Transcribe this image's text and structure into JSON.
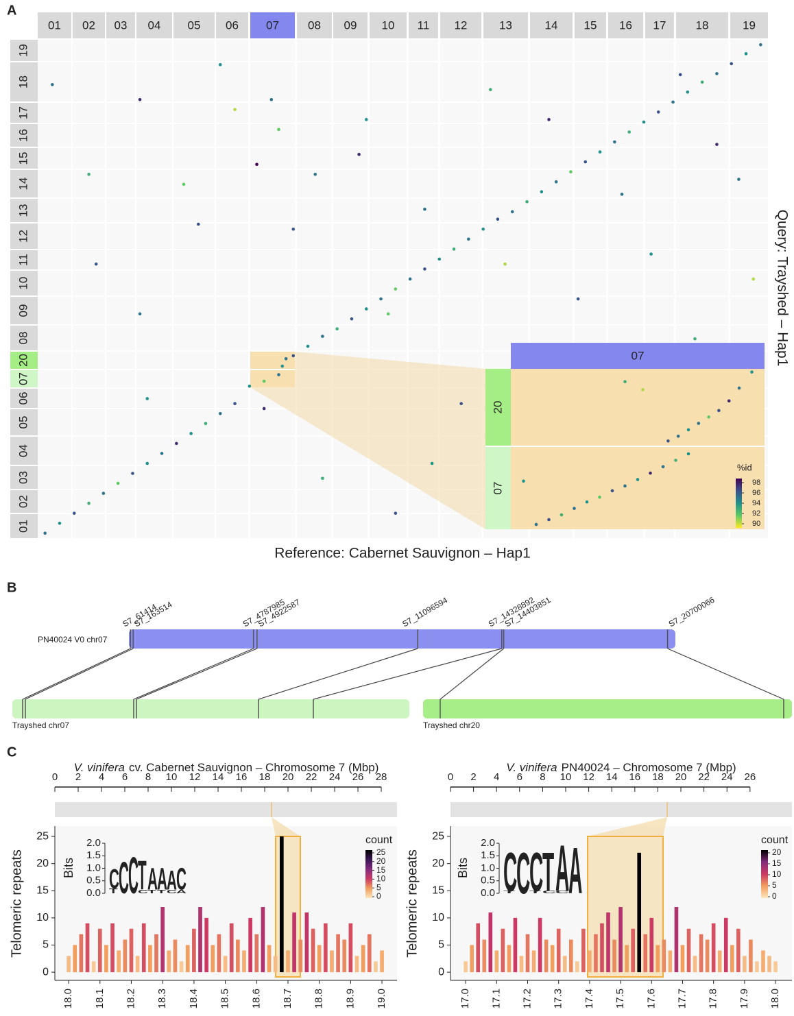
{
  "panel_labels": [
    "A",
    "B",
    "C"
  ],
  "dotplot": {
    "type": "scatter",
    "ref_chromosomes": [
      "01",
      "02",
      "03",
      "04",
      "05",
      "06",
      "07",
      "08",
      "09",
      "10",
      "11",
      "12",
      "13",
      "14",
      "15",
      "16",
      "17",
      "18",
      "19"
    ],
    "query_chromosomes": [
      "01",
      "02",
      "03",
      "04",
      "05",
      "06",
      "07",
      "20",
      "08",
      "09",
      "10",
      "11",
      "12",
      "13",
      "14",
      "15",
      "16",
      "17",
      "18",
      "19"
    ],
    "highlight_ref": "07",
    "highlight_color": "#8387ee",
    "row_colors": {
      "20": "#a5ee85",
      "07": "#cef6c6"
    },
    "x_label": "Reference: Cabernet Sauvignon – Hap1",
    "y_label": "Query: Trayshed – Hap1",
    "x": [
      1,
      3,
      5,
      7,
      9,
      11,
      13,
      15,
      17,
      19,
      21,
      23,
      25,
      27,
      29,
      31,
      33,
      35,
      37,
      39,
      41,
      43,
      45,
      47,
      49,
      51,
      53,
      55,
      57,
      59,
      61,
      63,
      65,
      67,
      69,
      71,
      73,
      75,
      77,
      79,
      81,
      83,
      85,
      87,
      89,
      91,
      93,
      95,
      97,
      99,
      33.5,
      34,
      2,
      7,
      8,
      14,
      14,
      15,
      20,
      22,
      25,
      27,
      30,
      31,
      32,
      33,
      35,
      38,
      39,
      44,
      45,
      48,
      49,
      53,
      54,
      58,
      62,
      64,
      70,
      71,
      74,
      77,
      80,
      84,
      88,
      90,
      93,
      96,
      98
    ],
    "y": [
      1,
      3,
      5,
      7,
      9,
      11,
      13,
      15,
      17,
      19,
      21,
      23,
      25,
      27,
      30.5,
      31.5,
      32.8,
      36.6,
      38.5,
      40.5,
      42,
      44,
      46,
      48,
      50,
      52,
      54,
      56,
      58,
      60,
      62,
      64,
      65.5,
      67.5,
      69.5,
      71.5,
      73.5,
      75.5,
      77.5,
      79.5,
      81.5,
      83.5,
      85.5,
      87.5,
      89.5,
      91.5,
      93.2,
      95.2,
      97.2,
      99,
      34.5,
      36,
      91,
      73,
      55,
      88,
      45,
      28,
      71,
      63,
      95,
      86,
      75,
      26,
      88,
      82,
      62,
      73,
      12,
      77,
      84,
      45,
      5,
      66,
      15,
      27,
      90,
      55,
      84,
      38,
      48,
      22,
      69,
      57,
      93,
      40,
      79,
      72,
      52
    ],
    "values": [
      95,
      94,
      96,
      93,
      95,
      92,
      96,
      94,
      95,
      97,
      94,
      93,
      95,
      96,
      94,
      92,
      95,
      96,
      94,
      95,
      93,
      96,
      94,
      95,
      92,
      95,
      96,
      94,
      93,
      95,
      94,
      96,
      95,
      93,
      94,
      95,
      92,
      96,
      94,
      95,
      93,
      94,
      96,
      95,
      94,
      93,
      95,
      96,
      94,
      95,
      94,
      95,
      95,
      93,
      96,
      97,
      95,
      94,
      92,
      96,
      94,
      91,
      98,
      97,
      95,
      92,
      96,
      95,
      93,
      97,
      94,
      92,
      96,
      95,
      94,
      96,
      93,
      91,
      97,
      94,
      96,
      92,
      95,
      94,
      96,
      93,
      97,
      95,
      91
    ],
    "legend_title": "%id",
    "legend_ticks": [
      98,
      96,
      94,
      92,
      90
    ],
    "colormap": [
      "#fde725",
      "#5ec962",
      "#21918c",
      "#3b528b",
      "#440154"
    ],
    "inset": {
      "ref": "07",
      "rows": [
        "20",
        "07"
      ],
      "x": [
        5,
        10,
        15,
        20,
        25,
        30,
        35,
        40,
        45,
        50,
        55,
        60,
        65,
        70,
        62,
        66,
        70,
        74,
        78,
        82,
        86,
        90,
        95,
        45,
        52
      ],
      "y": [
        30,
        3,
        6,
        9,
        13,
        17,
        20,
        24,
        27,
        31,
        35,
        39,
        43,
        47,
        55,
        58,
        62,
        66,
        70,
        74,
        80,
        88,
        98,
        92,
        87
      ],
      "values": [
        94,
        95,
        96,
        93,
        95,
        94,
        92,
        96,
        95,
        94,
        97,
        95,
        93,
        94,
        96,
        95,
        94,
        95,
        92,
        96,
        97,
        95,
        94,
        93,
        91
      ]
    }
  },
  "synteny": {
    "reference": "PN40024 V0 chr07",
    "targets": [
      "Trayshed chr07",
      "Trayshed chr20"
    ],
    "breakpoints": [
      {
        "value": 61414,
        "label": "S7_61414"
      },
      {
        "value": 163514,
        "label": "S7_163514"
      },
      {
        "value": 4787985,
        "label": "S7_4787985"
      },
      {
        "value": 4922587,
        "label": "S7_4922587"
      },
      {
        "value": 11096594,
        "label": "S7_11096594"
      },
      {
        "value": 14328892,
        "label": "S7_14328892"
      },
      {
        "value": 14403851,
        "label": "S7_14403851"
      },
      {
        "value": 20700066,
        "label": "S7_20700066"
      }
    ]
  },
  "telomere": [
    {
      "type": "bar",
      "title_italic": "V. vinifera",
      "title": "cv. Cabernet Sauvignon – Chromosome 7 (Mbp)",
      "top_xlim": [
        0,
        29.35
      ],
      "top_ticks": [
        0,
        2,
        4,
        6,
        8,
        10,
        12,
        14,
        16,
        18,
        20,
        22,
        24,
        26,
        28
      ],
      "y_label": "Telomeric repeats",
      "ylim": [
        -1.5,
        26.9
      ],
      "yticks": [
        0,
        5,
        10,
        15,
        20,
        25
      ],
      "xlim": [
        17.956,
        19.048
      ],
      "xticks": [
        {
          "value": 18,
          "label": "18.0"
        },
        {
          "value": 18.1,
          "label": "18.1"
        },
        {
          "value": 18.2,
          "label": "18.2"
        },
        {
          "value": 18.3,
          "label": "18.3"
        },
        {
          "value": 18.4,
          "label": "18.4"
        },
        {
          "value": 18.5,
          "label": "18.5"
        },
        {
          "value": 18.6,
          "label": "18.6"
        },
        {
          "value": 18.7,
          "label": "18.7"
        },
        {
          "value": 18.8,
          "label": "18.8"
        },
        {
          "value": 18.9,
          "label": "18.9"
        },
        {
          "value": 19,
          "label": "19.0"
        }
      ],
      "x": [
        18,
        18.02,
        18.04,
        18.06,
        18.08,
        18.1,
        18.12,
        18.14,
        18.16,
        18.18,
        18.2,
        18.22,
        18.24,
        18.26,
        18.28,
        18.3,
        18.32,
        18.34,
        18.36,
        18.38,
        18.4,
        18.42,
        18.44,
        18.46,
        18.48,
        18.5,
        18.52,
        18.54,
        18.56,
        18.58,
        18.6,
        18.62,
        18.64,
        18.66,
        18.68,
        18.7,
        18.72,
        18.74,
        18.76,
        18.78,
        18.8,
        18.82,
        18.84,
        18.86,
        18.88,
        18.9,
        18.92,
        18.94,
        18.96,
        18.98,
        19
      ],
      "values": [
        3,
        5,
        7,
        9,
        2,
        8,
        5,
        9,
        4,
        6,
        8,
        3,
        9,
        5,
        7,
        12,
        4,
        6,
        2,
        5,
        8,
        12,
        10,
        5,
        7,
        3,
        9,
        6,
        4,
        10,
        7,
        12,
        5,
        3,
        25,
        4,
        11,
        6,
        11,
        8,
        5,
        9,
        4,
        7,
        6,
        9,
        3,
        5,
        7,
        2,
        4
      ],
      "legend_title": "count",
      "legend_ticks": [
        0,
        5,
        10,
        15,
        20,
        25
      ],
      "colormap": [
        "#fbe6bc",
        "#f29e5e",
        "#cc3a63",
        "#842a7c",
        "#3b1657",
        "#000000"
      ],
      "logo": {
        "y_label": "Bits",
        "yticks": [
          {
            "value": 0,
            "label": "0.0"
          },
          {
            "value": 0.5,
            "label": "0.5"
          },
          {
            "value": 1,
            "label": "1.0"
          },
          {
            "value": 1.5,
            "label": "1.5"
          },
          {
            "value": 2,
            "label": "2.0"
          }
        ],
        "letter_colors": {
          "A": "#3f9a47",
          "C": "#3a5fa8",
          "T": "#d9342b"
        },
        "positions": [
          [
            {
              "letter": "T",
              "bits": 0.2
            },
            {
              "letter": "C",
              "bits": 0.8
            }
          ],
          [
            {
              "letter": "C",
              "bits": 1.3
            }
          ],
          [
            {
              "letter": "C",
              "bits": 1.5
            }
          ],
          [
            {
              "letter": "C",
              "bits": 0.15
            },
            {
              "letter": "T",
              "bits": 1.2
            }
          ],
          [
            {
              "letter": "T",
              "bits": 0.15
            },
            {
              "letter": "A",
              "bits": 0.9
            }
          ],
          [
            {
              "letter": "T",
              "bits": 0.15
            },
            {
              "letter": "A",
              "bits": 0.9
            }
          ],
          [
            {
              "letter": "C",
              "bits": 0.15
            },
            {
              "letter": "A",
              "bits": 0.8
            }
          ],
          [
            {
              "letter": "A",
              "bits": 0.15
            },
            {
              "letter": "C",
              "bits": 0.9
            }
          ]
        ]
      }
    },
    {
      "type": "bar",
      "title_italic": "V. vinifera",
      "title": "PN40024 – Chromosome 7 (Mbp)",
      "top_xlim": [
        0,
        29.64
      ],
      "top_ticks": [
        0,
        2,
        4,
        6,
        8,
        10,
        12,
        14,
        16,
        18,
        20,
        22,
        24,
        26
      ],
      "y_label": "Telomeric repeats",
      "ylim": [
        -1.5,
        26.9
      ],
      "yticks": [
        0,
        5,
        10,
        15,
        20,
        25
      ],
      "xlim": [
        16.951,
        18.053
      ],
      "xticks": [
        {
          "value": 17,
          "label": "17.0"
        },
        {
          "value": 17.1,
          "label": "17.1"
        },
        {
          "value": 17.2,
          "label": "17.2"
        },
        {
          "value": 17.3,
          "label": "17.3"
        },
        {
          "value": 17.4,
          "label": "17.4"
        },
        {
          "value": 17.5,
          "label": "17.5"
        },
        {
          "value": 17.6,
          "label": "17.6"
        },
        {
          "value": 17.7,
          "label": "17.7"
        },
        {
          "value": 17.8,
          "label": "17.8"
        },
        {
          "value": 17.9,
          "label": "17.9"
        },
        {
          "value": 18,
          "label": "18.0"
        }
      ],
      "x": [
        17,
        17.02,
        17.04,
        17.06,
        17.08,
        17.1,
        17.12,
        17.14,
        17.16,
        17.18,
        17.2,
        17.22,
        17.24,
        17.26,
        17.28,
        17.3,
        17.32,
        17.34,
        17.36,
        17.38,
        17.4,
        17.42,
        17.44,
        17.46,
        17.48,
        17.5,
        17.52,
        17.54,
        17.56,
        17.58,
        17.6,
        17.62,
        17.64,
        17.66,
        17.68,
        17.7,
        17.72,
        17.74,
        17.76,
        17.78,
        17.8,
        17.82,
        17.84,
        17.86,
        17.88,
        17.9,
        17.92,
        17.94,
        17.96,
        17.98,
        18
      ],
      "values": [
        2,
        5,
        9,
        6,
        11,
        4,
        8,
        5,
        10,
        3,
        7,
        4,
        10,
        6,
        5,
        8,
        3,
        6,
        2,
        8,
        4,
        7,
        9,
        11,
        6,
        12,
        5,
        8,
        22,
        7,
        10,
        5,
        6,
        4,
        12,
        5,
        8,
        3,
        7,
        6,
        9,
        4,
        10,
        5,
        8,
        3,
        6,
        2,
        4,
        3,
        2
      ],
      "legend_title": "count",
      "legend_ticks": [
        0,
        5,
        10,
        15,
        20
      ],
      "colormap": [
        "#fbe6bc",
        "#f29e5e",
        "#cc3a63",
        "#842a7c",
        "#000000"
      ],
      "logo": {
        "y_label": "Bits",
        "yticks": [
          {
            "value": 0,
            "label": "0.0"
          },
          {
            "value": 0.5,
            "label": "0.5"
          },
          {
            "value": 1,
            "label": "1.0"
          },
          {
            "value": 1.5,
            "label": "1.5"
          },
          {
            "value": 2,
            "label": "2.0"
          }
        ],
        "letter_colors": {
          "A": "#3f9a47",
          "C": "#3a5fa8",
          "T": "#d9342b"
        },
        "positions": [
          [
            {
              "letter": "T",
              "bits": 0.1
            },
            {
              "letter": "C",
              "bits": 1.6
            }
          ],
          [
            {
              "letter": "C",
              "bits": 1.7
            }
          ],
          [
            {
              "letter": "T",
              "bits": 0.1
            },
            {
              "letter": "C",
              "bits": 1.6
            }
          ],
          [
            {
              "letter": "C",
              "bits": 0.1
            },
            {
              "letter": "T",
              "bits": 1.6
            }
          ],
          [
            {
              "letter": "C",
              "bits": 0.1
            },
            {
              "letter": "A",
              "bits": 1.9
            }
          ],
          [
            {
              "letter": "A",
              "bits": 1.9
            }
          ]
        ]
      }
    }
  ]
}
